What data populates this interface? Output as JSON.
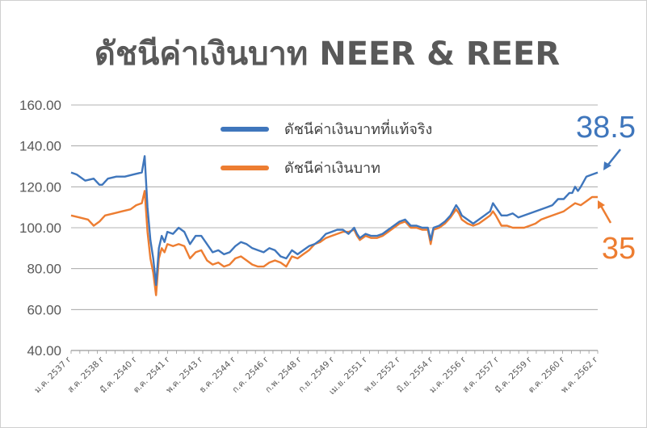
{
  "chart_data": {
    "type": "line",
    "title": "ดัชนีค่าเงินบาท NEER & REER",
    "ylim": [
      40,
      160
    ],
    "y_ticks": [
      "160.00",
      "140.00",
      "120.00",
      "100.00",
      "80.00",
      "60.00",
      "40.00"
    ],
    "x_ticks": [
      "ม.ค. 2537",
      "ส.ค. 2538",
      "มี.ค. 2540",
      "ต.ค. 2541",
      "พ.ค. 2543",
      "ธ.ค. 2544",
      "ก.ค. 2546",
      "ก.พ. 2548",
      "ก.ย. 2549",
      "เม.ย. 2551",
      "พ.ย. 2552",
      "มิ.ย. 2554",
      "ม.ค. 2556",
      "ส.ค. 2557",
      "มี.ค. 2559",
      "ต.ค. 2560",
      "พ.ค. 2562"
    ],
    "tick_suffix": "r",
    "grid": true,
    "legend_position": "top-center",
    "series": [
      {
        "name": "ดัชนีค่าเงินบาทที่แท้จริง",
        "color": "#3F76BC",
        "points": [
          [
            0,
            127
          ],
          [
            2,
            126
          ],
          [
            5,
            123
          ],
          [
            8,
            124
          ],
          [
            10,
            121
          ],
          [
            11,
            121
          ],
          [
            13,
            124
          ],
          [
            16,
            125
          ],
          [
            19,
            125
          ],
          [
            22,
            126
          ],
          [
            25,
            127
          ],
          [
            26,
            135
          ],
          [
            27,
            110
          ],
          [
            28,
            94
          ],
          [
            29,
            85
          ],
          [
            30,
            72
          ],
          [
            31,
            90
          ],
          [
            32,
            96
          ],
          [
            33,
            93
          ],
          [
            34,
            98
          ],
          [
            36,
            97
          ],
          [
            38,
            100
          ],
          [
            40,
            98
          ],
          [
            42,
            92
          ],
          [
            44,
            96
          ],
          [
            46,
            96
          ],
          [
            48,
            92
          ],
          [
            50,
            88
          ],
          [
            52,
            89
          ],
          [
            54,
            87
          ],
          [
            56,
            88
          ],
          [
            58,
            91
          ],
          [
            60,
            93
          ],
          [
            62,
            92
          ],
          [
            64,
            90
          ],
          [
            66,
            89
          ],
          [
            68,
            88
          ],
          [
            70,
            90
          ],
          [
            72,
            89
          ],
          [
            74,
            86
          ],
          [
            76,
            85
          ],
          [
            78,
            89
          ],
          [
            80,
            87
          ],
          [
            82,
            89
          ],
          [
            84,
            91
          ],
          [
            86,
            92
          ],
          [
            88,
            94
          ],
          [
            90,
            97
          ],
          [
            92,
            98
          ],
          [
            94,
            99
          ],
          [
            96,
            99
          ],
          [
            98,
            97
          ],
          [
            100,
            100
          ],
          [
            101,
            97
          ],
          [
            102,
            95
          ],
          [
            104,
            97
          ],
          [
            106,
            96
          ],
          [
            108,
            96
          ],
          [
            110,
            97
          ],
          [
            112,
            99
          ],
          [
            114,
            101
          ],
          [
            116,
            103
          ],
          [
            118,
            104
          ],
          [
            120,
            101
          ],
          [
            121,
            101
          ],
          [
            122,
            101
          ],
          [
            124,
            100
          ],
          [
            126,
            100
          ],
          [
            127,
            94
          ],
          [
            128,
            100
          ],
          [
            130,
            101
          ],
          [
            132,
            103
          ],
          [
            134,
            106
          ],
          [
            136,
            111
          ],
          [
            137,
            109
          ],
          [
            138,
            106
          ],
          [
            140,
            104
          ],
          [
            142,
            102
          ],
          [
            144,
            104
          ],
          [
            146,
            106
          ],
          [
            148,
            108
          ],
          [
            149,
            112
          ],
          [
            150,
            110
          ],
          [
            152,
            106
          ],
          [
            154,
            106
          ],
          [
            156,
            107
          ],
          [
            158,
            105
          ],
          [
            160,
            106
          ],
          [
            162,
            107
          ],
          [
            164,
            108
          ],
          [
            166,
            109
          ],
          [
            168,
            110
          ],
          [
            170,
            111
          ],
          [
            172,
            114
          ],
          [
            174,
            114
          ],
          [
            176,
            117
          ],
          [
            177,
            117
          ],
          [
            178,
            120
          ],
          [
            179,
            118
          ],
          [
            180,
            120
          ],
          [
            182,
            125
          ],
          [
            184,
            126
          ],
          [
            186,
            127
          ]
        ]
      },
      {
        "name": "ดัชนีค่าเงินบาท",
        "color": "#ED7D31",
        "points": [
          [
            0,
            106
          ],
          [
            3,
            105
          ],
          [
            6,
            104
          ],
          [
            8,
            101
          ],
          [
            10,
            103
          ],
          [
            12,
            106
          ],
          [
            15,
            107
          ],
          [
            18,
            108
          ],
          [
            21,
            109
          ],
          [
            23,
            111
          ],
          [
            25,
            112
          ],
          [
            26,
            118
          ],
          [
            27,
            98
          ],
          [
            28,
            85
          ],
          [
            29,
            78
          ],
          [
            30,
            67
          ],
          [
            31,
            85
          ],
          [
            32,
            90
          ],
          [
            33,
            88
          ],
          [
            34,
            92
          ],
          [
            36,
            91
          ],
          [
            38,
            92
          ],
          [
            40,
            91
          ],
          [
            42,
            85
          ],
          [
            44,
            88
          ],
          [
            46,
            89
          ],
          [
            48,
            84
          ],
          [
            50,
            82
          ],
          [
            52,
            83
          ],
          [
            54,
            81
          ],
          [
            56,
            82
          ],
          [
            58,
            85
          ],
          [
            60,
            86
          ],
          [
            62,
            84
          ],
          [
            64,
            82
          ],
          [
            66,
            81
          ],
          [
            68,
            81
          ],
          [
            70,
            83
          ],
          [
            72,
            84
          ],
          [
            74,
            83
          ],
          [
            76,
            81
          ],
          [
            78,
            86
          ],
          [
            80,
            85
          ],
          [
            82,
            87
          ],
          [
            84,
            89
          ],
          [
            86,
            92
          ],
          [
            88,
            93
          ],
          [
            90,
            95
          ],
          [
            92,
            96
          ],
          [
            94,
            97
          ],
          [
            96,
            98
          ],
          [
            98,
            98
          ],
          [
            100,
            99
          ],
          [
            101,
            96
          ],
          [
            102,
            94
          ],
          [
            104,
            96
          ],
          [
            106,
            95
          ],
          [
            108,
            95
          ],
          [
            110,
            96
          ],
          [
            112,
            98
          ],
          [
            114,
            100
          ],
          [
            116,
            102
          ],
          [
            118,
            103
          ],
          [
            120,
            100
          ],
          [
            122,
            100
          ],
          [
            124,
            99
          ],
          [
            126,
            99
          ],
          [
            127,
            92
          ],
          [
            128,
            99
          ],
          [
            130,
            100
          ],
          [
            132,
            102
          ],
          [
            134,
            105
          ],
          [
            136,
            109
          ],
          [
            137,
            107
          ],
          [
            138,
            104
          ],
          [
            140,
            102
          ],
          [
            142,
            101
          ],
          [
            144,
            102
          ],
          [
            146,
            104
          ],
          [
            148,
            106
          ],
          [
            149,
            108
          ],
          [
            150,
            106
          ],
          [
            152,
            101
          ],
          [
            154,
            101
          ],
          [
            156,
            100
          ],
          [
            158,
            100
          ],
          [
            160,
            100
          ],
          [
            162,
            101
          ],
          [
            164,
            102
          ],
          [
            166,
            104
          ],
          [
            168,
            105
          ],
          [
            170,
            106
          ],
          [
            172,
            107
          ],
          [
            174,
            108
          ],
          [
            176,
            110
          ],
          [
            178,
            112
          ],
          [
            180,
            111
          ],
          [
            182,
            113
          ],
          [
            184,
            115
          ],
          [
            186,
            115
          ]
        ]
      }
    ],
    "annotations": [
      {
        "text": "38.5",
        "color": "#3F76BC"
      },
      {
        "text": "35",
        "color": "#ED7D31"
      }
    ]
  }
}
